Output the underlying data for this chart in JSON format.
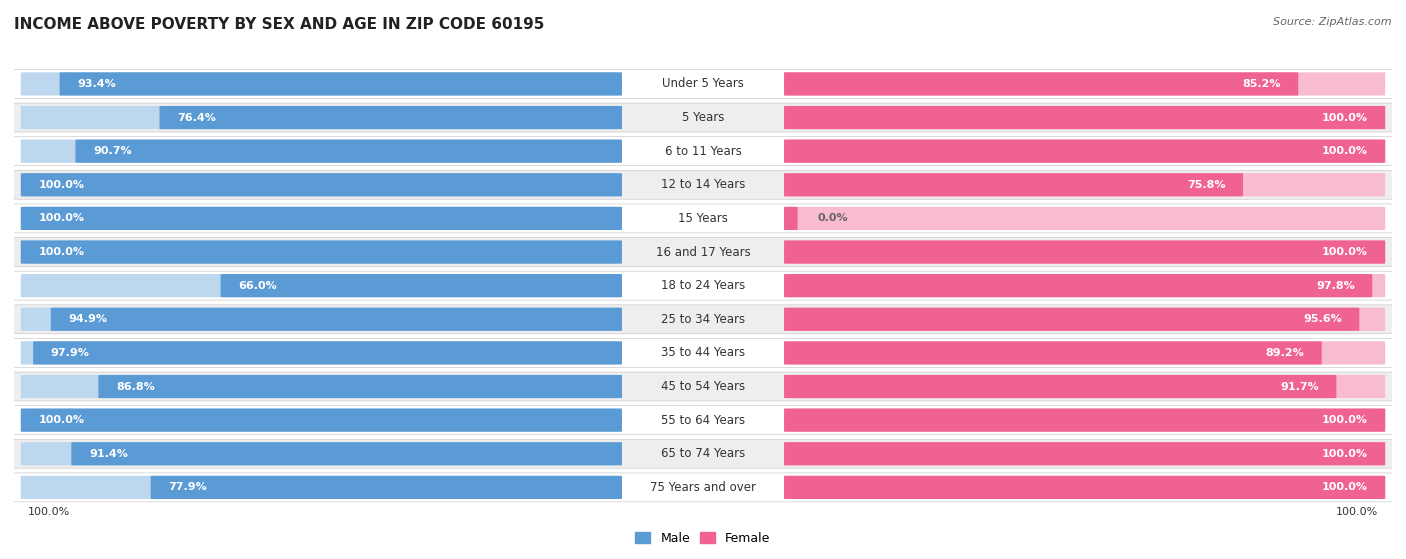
{
  "title": "INCOME ABOVE POVERTY BY SEX AND AGE IN ZIP CODE 60195",
  "source": "Source: ZipAtlas.com",
  "categories": [
    "Under 5 Years",
    "5 Years",
    "6 to 11 Years",
    "12 to 14 Years",
    "15 Years",
    "16 and 17 Years",
    "18 to 24 Years",
    "25 to 34 Years",
    "35 to 44 Years",
    "45 to 54 Years",
    "55 to 64 Years",
    "65 to 74 Years",
    "75 Years and over"
  ],
  "male_values": [
    93.4,
    76.4,
    90.7,
    100.0,
    100.0,
    100.0,
    66.0,
    94.9,
    97.9,
    86.8,
    100.0,
    91.4,
    77.9
  ],
  "female_values": [
    85.2,
    100.0,
    100.0,
    75.8,
    0.0,
    100.0,
    97.8,
    95.6,
    89.2,
    91.7,
    100.0,
    100.0,
    100.0
  ],
  "male_color": "#5b9bd5",
  "male_color_light": "#bdd7ee",
  "female_color": "#f06292",
  "female_color_light": "#f8bbd0",
  "row_color_odd": "#ffffff",
  "row_color_even": "#eeeeee",
  "title_fontsize": 11,
  "label_fontsize": 8.5,
  "source_fontsize": 8,
  "bar_label_fontsize": 8,
  "bottom_label": "100.0%"
}
